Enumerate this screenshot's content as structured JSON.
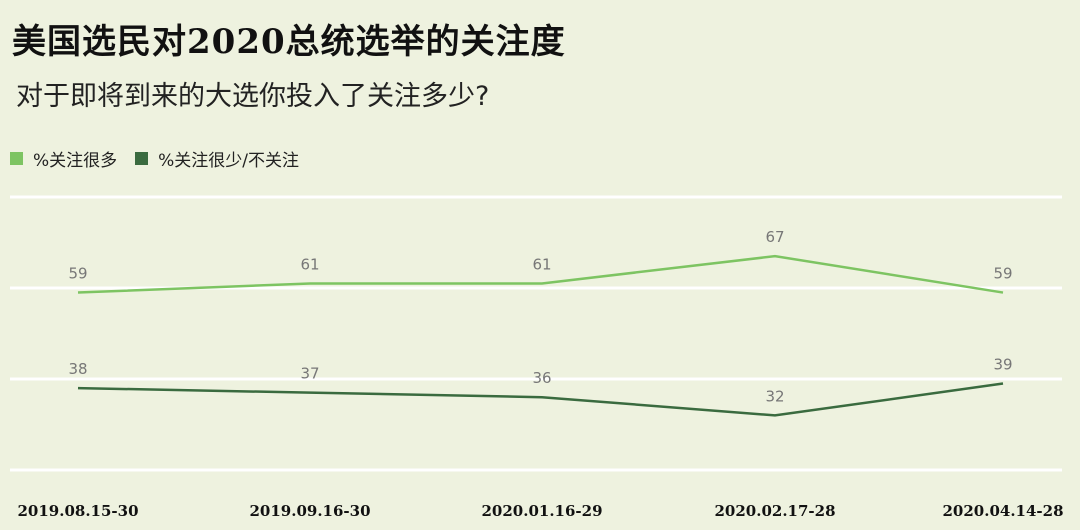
{
  "chart_data": {
    "type": "line",
    "title": "美国选民对2020总统选举的关注度",
    "subtitle": "对于即将到来的大选你投入了关注多少?",
    "categories": [
      "2019.08.15-30",
      "2019.09.16-30",
      "2020.01.16-29",
      "2020.02.17-28",
      "2020.04.14-28"
    ],
    "series": [
      {
        "name": "%关注很多",
        "values": [
          59,
          61,
          61,
          67,
          59
        ],
        "color": "#7dc462"
      },
      {
        "name": "%关注很少/不关注",
        "values": [
          38,
          37,
          36,
          32,
          39
        ],
        "color": "#3a6b3f"
      }
    ],
    "ylim": [
      20,
      80
    ],
    "grid": true,
    "legend_position": "top-left"
  }
}
